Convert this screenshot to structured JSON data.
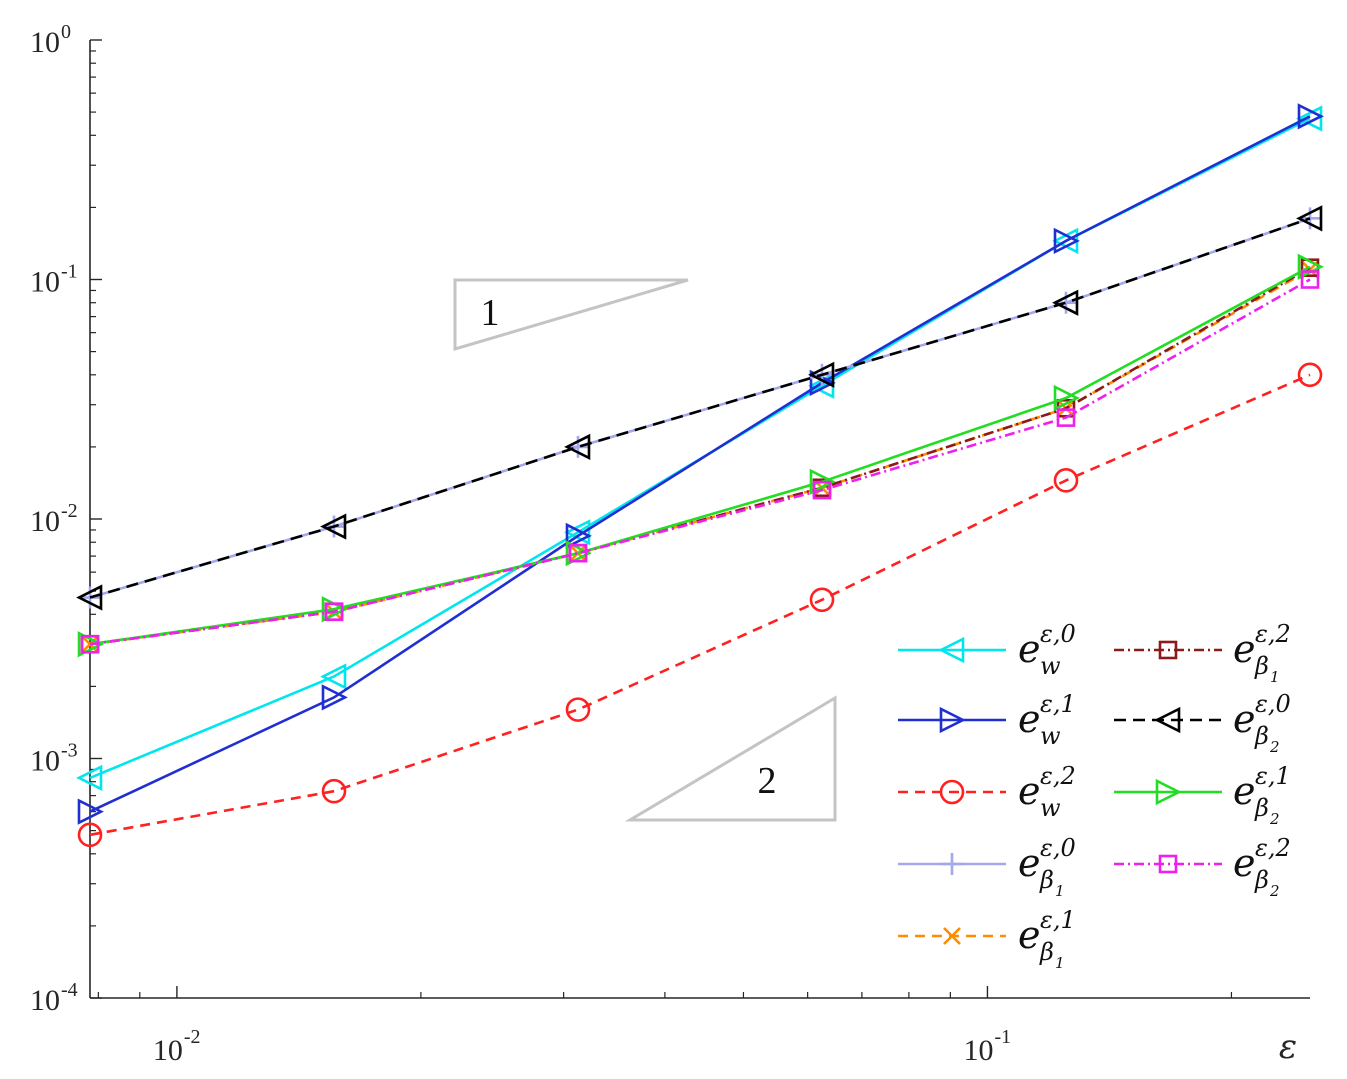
{
  "chart_data": {
    "type": "line",
    "xscale": "log",
    "yscale": "log",
    "xlim": [
      0.0078125,
      0.25
    ],
    "ylim": [
      0.0001,
      1
    ],
    "xlabel": "ε",
    "ylabel": "",
    "grid": false,
    "legend_position": "bottom-right",
    "x_ticks": [
      {
        "base": "10",
        "exp": "-2",
        "value": 0.01
      },
      {
        "base": "10",
        "exp": "-1",
        "value": 0.1
      }
    ],
    "y_ticks": [
      {
        "base": "10",
        "exp": "0",
        "value": 1
      },
      {
        "base": "10",
        "exp": "-1",
        "value": 0.1
      },
      {
        "base": "10",
        "exp": "-2",
        "value": 0.01
      },
      {
        "base": "10",
        "exp": "-3",
        "value": 0.001
      },
      {
        "base": "10",
        "exp": "-4",
        "value": 0.0001
      }
    ],
    "x": [
      0.0078125,
      0.015625,
      0.03125,
      0.0625,
      0.125,
      0.25
    ],
    "slope_triangles": [
      {
        "label": "1",
        "slope": 1
      },
      {
        "label": "2",
        "slope": 2
      }
    ],
    "series": [
      {
        "name": "e_w^{ε,0}",
        "sup": "ε,0",
        "sub": "w",
        "subsub": "",
        "color": "#00e5ee",
        "dash": "",
        "marker": "triangle-left",
        "values": [
          0.00083,
          0.0022,
          0.0088,
          0.036,
          0.145,
          0.47
        ]
      },
      {
        "name": "e_w^{ε,1}",
        "sup": "ε,1",
        "sub": "w",
        "subsub": "",
        "color": "#1f2fd1",
        "dash": "",
        "marker": "triangle-right",
        "values": [
          0.0006,
          0.0018,
          0.0085,
          0.037,
          0.145,
          0.48
        ]
      },
      {
        "name": "e_w^{ε,2}",
        "sup": "ε,2",
        "sub": "w",
        "subsub": "",
        "color": "#ff2020",
        "dash": "10,7",
        "marker": "circle",
        "values": [
          0.00048,
          0.00073,
          0.0016,
          0.0046,
          0.0145,
          0.04
        ]
      },
      {
        "name": "e_{β1}^{ε,0}",
        "sup": "ε,0",
        "sub": "β",
        "subsub": "1",
        "color": "#a3a8ee",
        "dash": "",
        "marker": "plus",
        "values": [
          0.0047,
          0.0093,
          0.02,
          0.04,
          0.08,
          0.18
        ]
      },
      {
        "name": "e_{β1}^{ε,1}",
        "sup": "ε,1",
        "sub": "β",
        "subsub": "1",
        "color": "#ff8c00",
        "dash": "10,7",
        "marker": "x",
        "values": [
          0.003,
          0.0041,
          0.0072,
          0.0135,
          0.029,
          0.11
        ]
      },
      {
        "name": "e_{β1}^{ε,2}",
        "sup": "ε,2",
        "sub": "β",
        "subsub": "1",
        "color": "#8b1a1a",
        "dash": "10,4,2,4",
        "marker": "square",
        "values": [
          0.003,
          0.0041,
          0.0072,
          0.0135,
          0.029,
          0.112
        ]
      },
      {
        "name": "e_{β2}^{ε,0}",
        "sup": "ε,0",
        "sub": "β",
        "subsub": "2",
        "color": "#000000",
        "dash": "12,7",
        "marker": "triangle-left",
        "values": [
          0.0047,
          0.0093,
          0.02,
          0.04,
          0.08,
          0.18
        ]
      },
      {
        "name": "e_{β2}^{ε,1}",
        "sup": "ε,1",
        "sub": "β",
        "subsub": "2",
        "color": "#22dd22",
        "dash": "",
        "marker": "triangle-right",
        "values": [
          0.003,
          0.0042,
          0.0072,
          0.0143,
          0.032,
          0.113
        ]
      },
      {
        "name": "e_{β2}^{ε,2}",
        "sup": "ε,2",
        "sub": "β",
        "subsub": "2",
        "color": "#ee20ee",
        "dash": "10,4,2,4",
        "marker": "square",
        "values": [
          0.003,
          0.0041,
          0.0072,
          0.0132,
          0.0265,
          0.1
        ]
      }
    ]
  }
}
